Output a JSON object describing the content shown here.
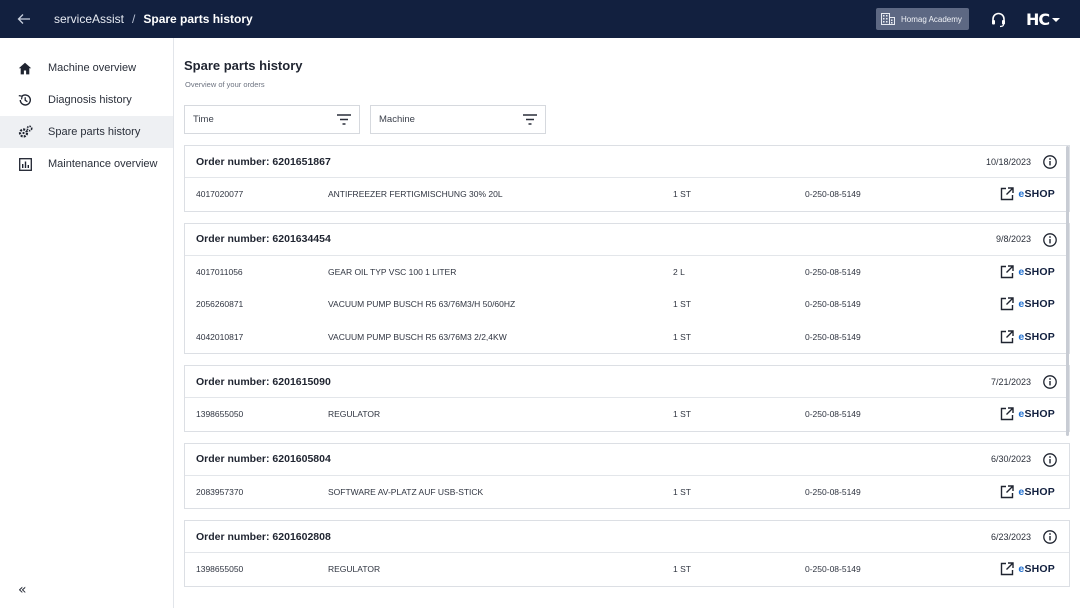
{
  "header": {
    "app_name": "serviceAssist",
    "separator": "/",
    "current_page": "Spare parts history",
    "academy_label": "Homag Academy",
    "logo_text": "HC"
  },
  "sidebar": {
    "items": [
      {
        "label": "Machine overview",
        "icon": "home-icon"
      },
      {
        "label": "Diagnosis history",
        "icon": "history-icon"
      },
      {
        "label": "Spare parts history",
        "icon": "gear-icon"
      },
      {
        "label": "Maintenance overview",
        "icon": "chart-icon"
      }
    ],
    "collapse_label": "«"
  },
  "main": {
    "title": "Spare parts history",
    "subtitle": "Overview of your orders",
    "filters": [
      {
        "label": "Time"
      },
      {
        "label": "Machine"
      }
    ],
    "eshop_prefix": "e",
    "eshop_label": "SHOP",
    "orders": [
      {
        "title": "Order number: 6201651867",
        "date": "10/18/2023",
        "items": [
          {
            "part": "4017020077",
            "desc": "ANTIFREEZER FERTIGMISCHUNG 30% 20L",
            "qty": "1 ST",
            "machine": "0-250-08-5149"
          }
        ]
      },
      {
        "title": "Order number: 6201634454",
        "date": "9/8/2023",
        "items": [
          {
            "part": "4017011056",
            "desc": "GEAR OIL TYP VSC 100 1 LITER",
            "qty": "2 L",
            "machine": "0-250-08-5149"
          },
          {
            "part": "2056260871",
            "desc": "VACUUM PUMP BUSCH R5 63/76M3/H 50/60HZ",
            "qty": "1 ST",
            "machine": "0-250-08-5149"
          },
          {
            "part": "4042010817",
            "desc": "VACUUM PUMP BUSCH R5 63/76M3 2/2,4KW",
            "qty": "1 ST",
            "machine": "0-250-08-5149"
          }
        ]
      },
      {
        "title": "Order number: 6201615090",
        "date": "7/21/2023",
        "items": [
          {
            "part": "1398655050",
            "desc": "REGULATOR",
            "qty": "1 ST",
            "machine": "0-250-08-5149"
          }
        ]
      },
      {
        "title": "Order number: 6201605804",
        "date": "6/30/2023",
        "items": [
          {
            "part": "2083957370",
            "desc": "SOFTWARE AV-PLATZ AUF USB-STICK",
            "qty": "1 ST",
            "machine": "0-250-08-5149"
          }
        ]
      },
      {
        "title": "Order number: 6201602808",
        "date": "6/23/2023",
        "items": [
          {
            "part": "1398655050",
            "desc": "REGULATOR",
            "qty": "1 ST",
            "machine": "0-250-08-5149"
          }
        ]
      }
    ]
  },
  "colors": {
    "header_bg": "#12203f",
    "accent_blue": "#1f6fd1",
    "active_nav_bg": "#eef0f3"
  }
}
